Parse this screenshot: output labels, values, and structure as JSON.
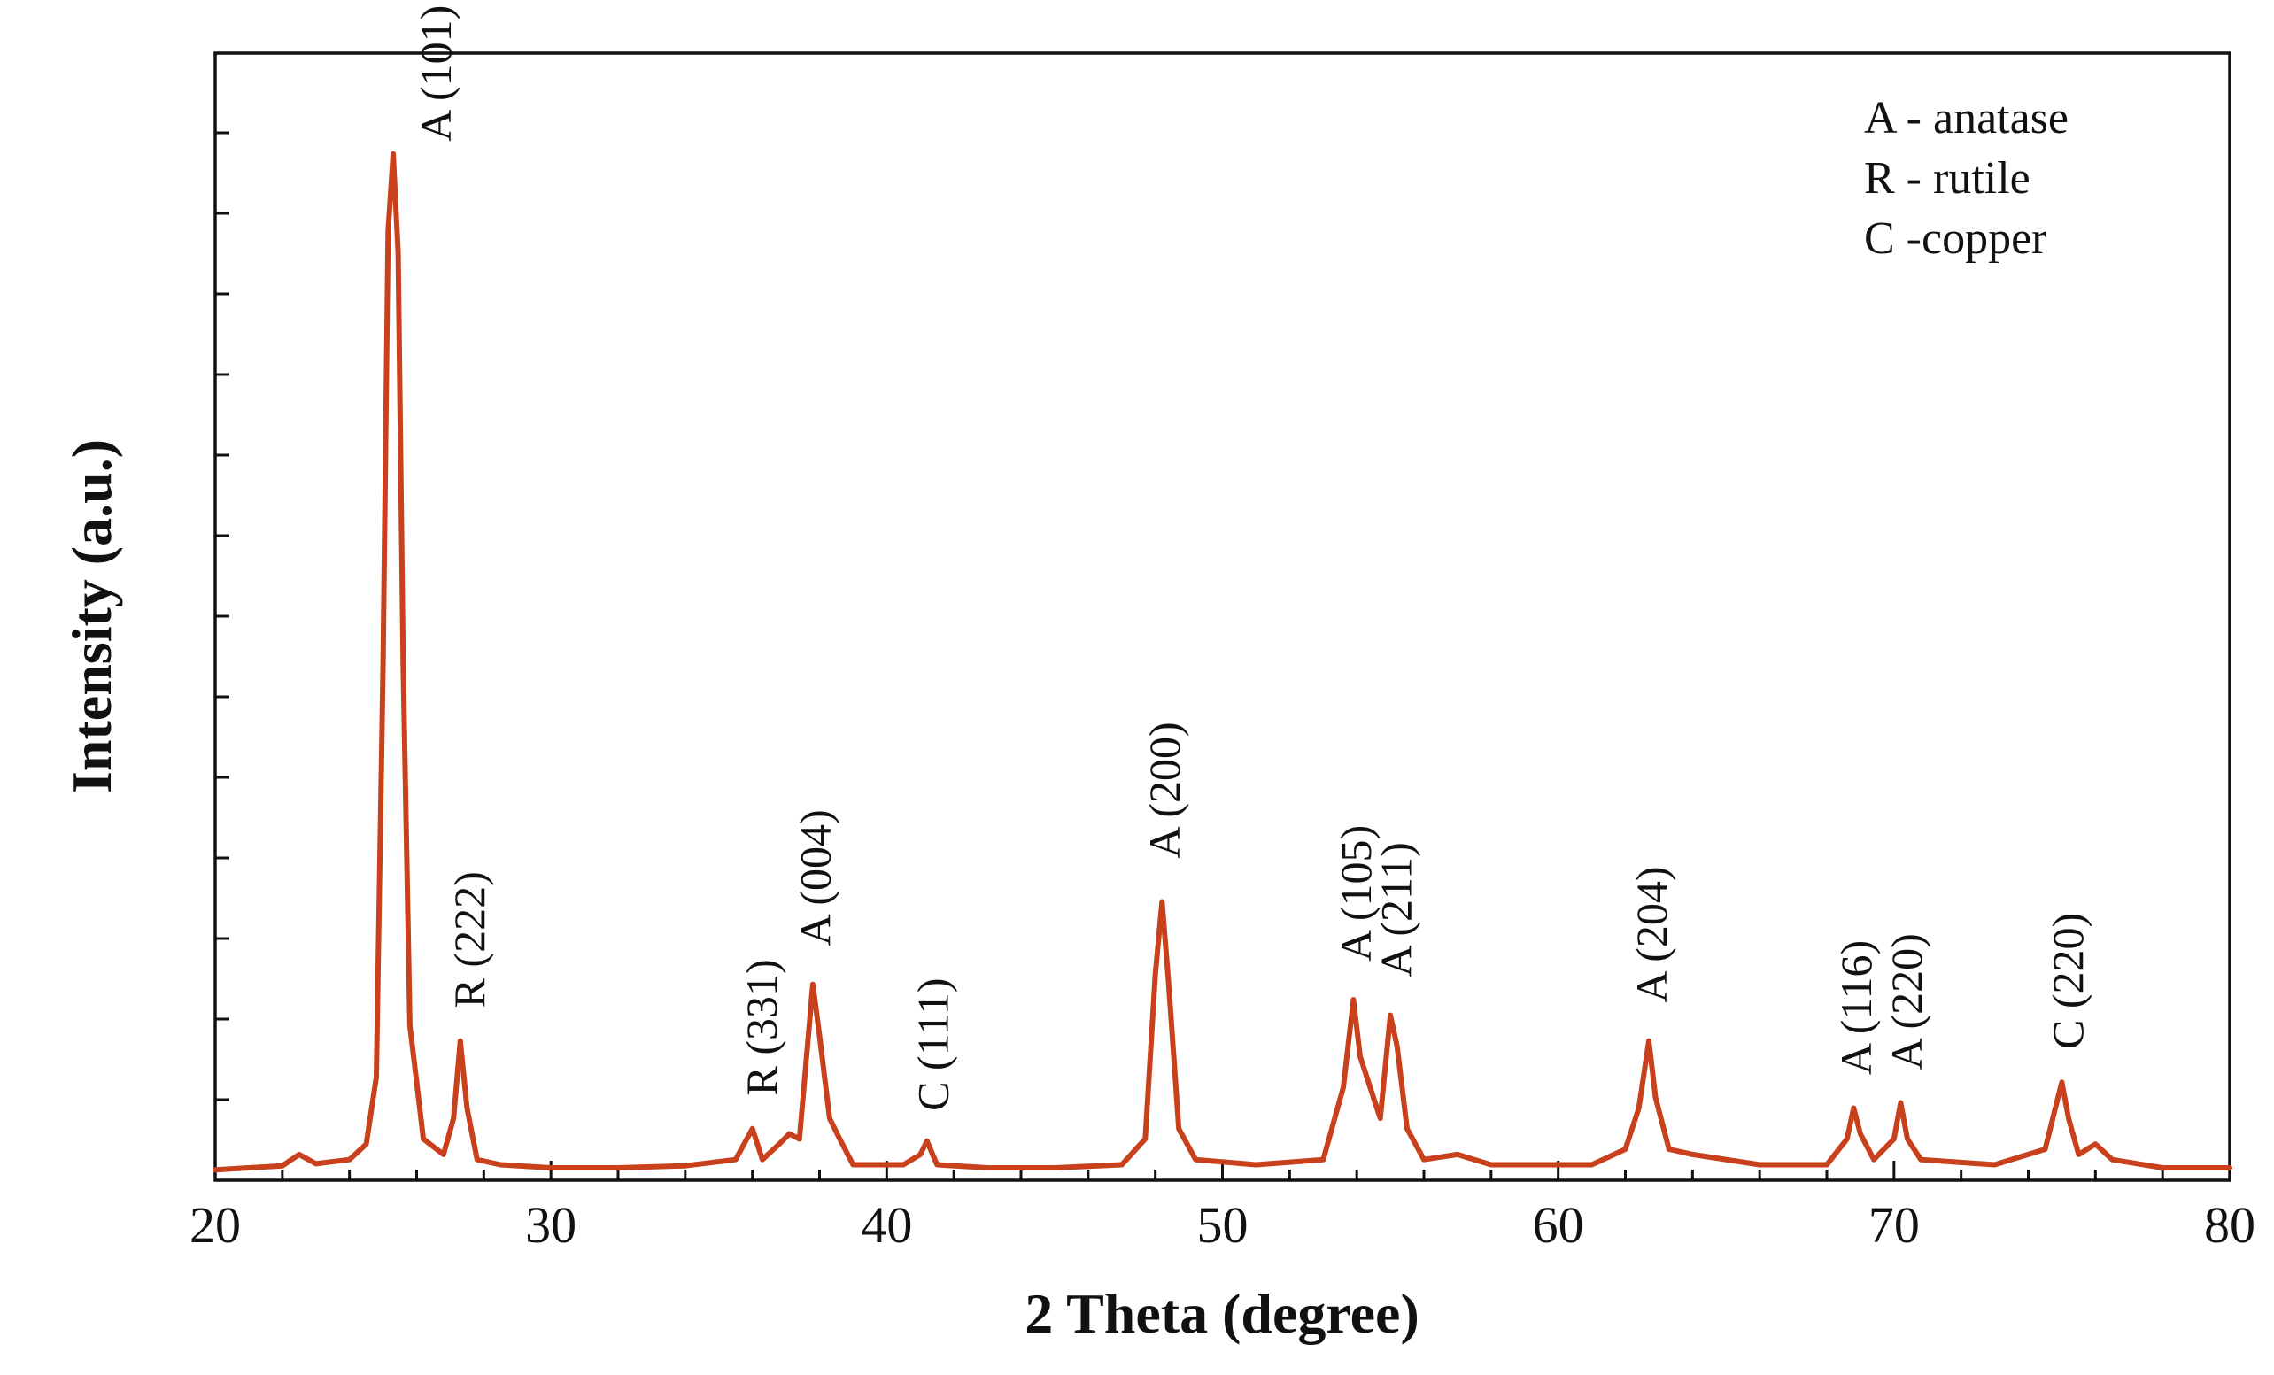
{
  "chart_data": {
    "type": "line",
    "title": "",
    "xlabel": "2 Theta (degree)",
    "ylabel": "Intensity (a.u.)",
    "xlim": [
      20,
      80
    ],
    "ylim": [
      0,
      1.0
    ],
    "x_ticks": [
      20,
      30,
      40,
      50,
      60,
      70,
      80
    ],
    "y_tick_labels_shown": false,
    "grid": false,
    "legend": {
      "placement": "top-right",
      "entries": [
        "A - anatase",
        "R - rutile",
        "C -copper"
      ]
    },
    "series": [
      {
        "color": "#c8401c",
        "points": [
          [
            20.0,
            0.01
          ],
          [
            21.0,
            0.012
          ],
          [
            22.0,
            0.014
          ],
          [
            22.5,
            0.025
          ],
          [
            23.0,
            0.016
          ],
          [
            24.0,
            0.02
          ],
          [
            24.5,
            0.035
          ],
          [
            24.8,
            0.1
          ],
          [
            25.0,
            0.5
          ],
          [
            25.15,
            0.92
          ],
          [
            25.3,
            0.995
          ],
          [
            25.45,
            0.9
          ],
          [
            25.6,
            0.5
          ],
          [
            25.8,
            0.15
          ],
          [
            26.2,
            0.04
          ],
          [
            26.8,
            0.025
          ],
          [
            27.1,
            0.06
          ],
          [
            27.3,
            0.135
          ],
          [
            27.5,
            0.07
          ],
          [
            27.8,
            0.02
          ],
          [
            28.5,
            0.015
          ],
          [
            30.0,
            0.012
          ],
          [
            32.0,
            0.012
          ],
          [
            34.0,
            0.014
          ],
          [
            35.5,
            0.02
          ],
          [
            36.0,
            0.05
          ],
          [
            36.3,
            0.02
          ],
          [
            36.8,
            0.035
          ],
          [
            37.1,
            0.045
          ],
          [
            37.4,
            0.04
          ],
          [
            37.8,
            0.19
          ],
          [
            38.0,
            0.14
          ],
          [
            38.3,
            0.06
          ],
          [
            38.6,
            0.04
          ],
          [
            39.0,
            0.015
          ],
          [
            40.5,
            0.015
          ],
          [
            41.0,
            0.025
          ],
          [
            41.2,
            0.038
          ],
          [
            41.5,
            0.015
          ],
          [
            43.0,
            0.012
          ],
          [
            45.0,
            0.012
          ],
          [
            47.0,
            0.015
          ],
          [
            47.7,
            0.04
          ],
          [
            48.0,
            0.2
          ],
          [
            48.2,
            0.27
          ],
          [
            48.4,
            0.19
          ],
          [
            48.7,
            0.05
          ],
          [
            49.2,
            0.02
          ],
          [
            51.0,
            0.015
          ],
          [
            53.0,
            0.02
          ],
          [
            53.6,
            0.09
          ],
          [
            53.9,
            0.175
          ],
          [
            54.1,
            0.12
          ],
          [
            54.4,
            0.09
          ],
          [
            54.7,
            0.06
          ],
          [
            55.0,
            0.16
          ],
          [
            55.2,
            0.13
          ],
          [
            55.5,
            0.05
          ],
          [
            56.0,
            0.02
          ],
          [
            57.0,
            0.025
          ],
          [
            58.0,
            0.015
          ],
          [
            61.0,
            0.015
          ],
          [
            62.0,
            0.03
          ],
          [
            62.4,
            0.07
          ],
          [
            62.7,
            0.135
          ],
          [
            62.9,
            0.08
          ],
          [
            63.3,
            0.03
          ],
          [
            64.0,
            0.025
          ],
          [
            66.0,
            0.015
          ],
          [
            68.0,
            0.015
          ],
          [
            68.6,
            0.04
          ],
          [
            68.8,
            0.07
          ],
          [
            69.0,
            0.045
          ],
          [
            69.4,
            0.02
          ],
          [
            70.0,
            0.04
          ],
          [
            70.2,
            0.075
          ],
          [
            70.4,
            0.04
          ],
          [
            70.8,
            0.02
          ],
          [
            73.0,
            0.015
          ],
          [
            74.5,
            0.03
          ],
          [
            75.0,
            0.095
          ],
          [
            75.2,
            0.06
          ],
          [
            75.5,
            0.025
          ],
          [
            76.0,
            0.035
          ],
          [
            76.5,
            0.02
          ],
          [
            78.0,
            0.012
          ],
          [
            80.0,
            0.012
          ]
        ]
      }
    ],
    "annotations": [
      {
        "text": "A (101)",
        "x": 26.6,
        "y": 0.995
      },
      {
        "text": "R (222)",
        "x": 27.6,
        "y": 0.155
      },
      {
        "text": "R (331)",
        "x": 36.3,
        "y": 0.07
      },
      {
        "text": "A (004)",
        "x": 37.9,
        "y": 0.215
      },
      {
        "text": "C (111)",
        "x": 41.4,
        "y": 0.055
      },
      {
        "text": "A (200)",
        "x": 48.3,
        "y": 0.3
      },
      {
        "text": "A (105)",
        "x": 54.0,
        "y": 0.2
      },
      {
        "text": "A (211)",
        "x": 55.2,
        "y": 0.185
      },
      {
        "text": "A (204)",
        "x": 62.8,
        "y": 0.16
      },
      {
        "text": "A (116)",
        "x": 68.9,
        "y": 0.09
      },
      {
        "text": "A (220)",
        "x": 70.4,
        "y": 0.095
      },
      {
        "text": "C (220)",
        "x": 75.2,
        "y": 0.115
      }
    ]
  }
}
